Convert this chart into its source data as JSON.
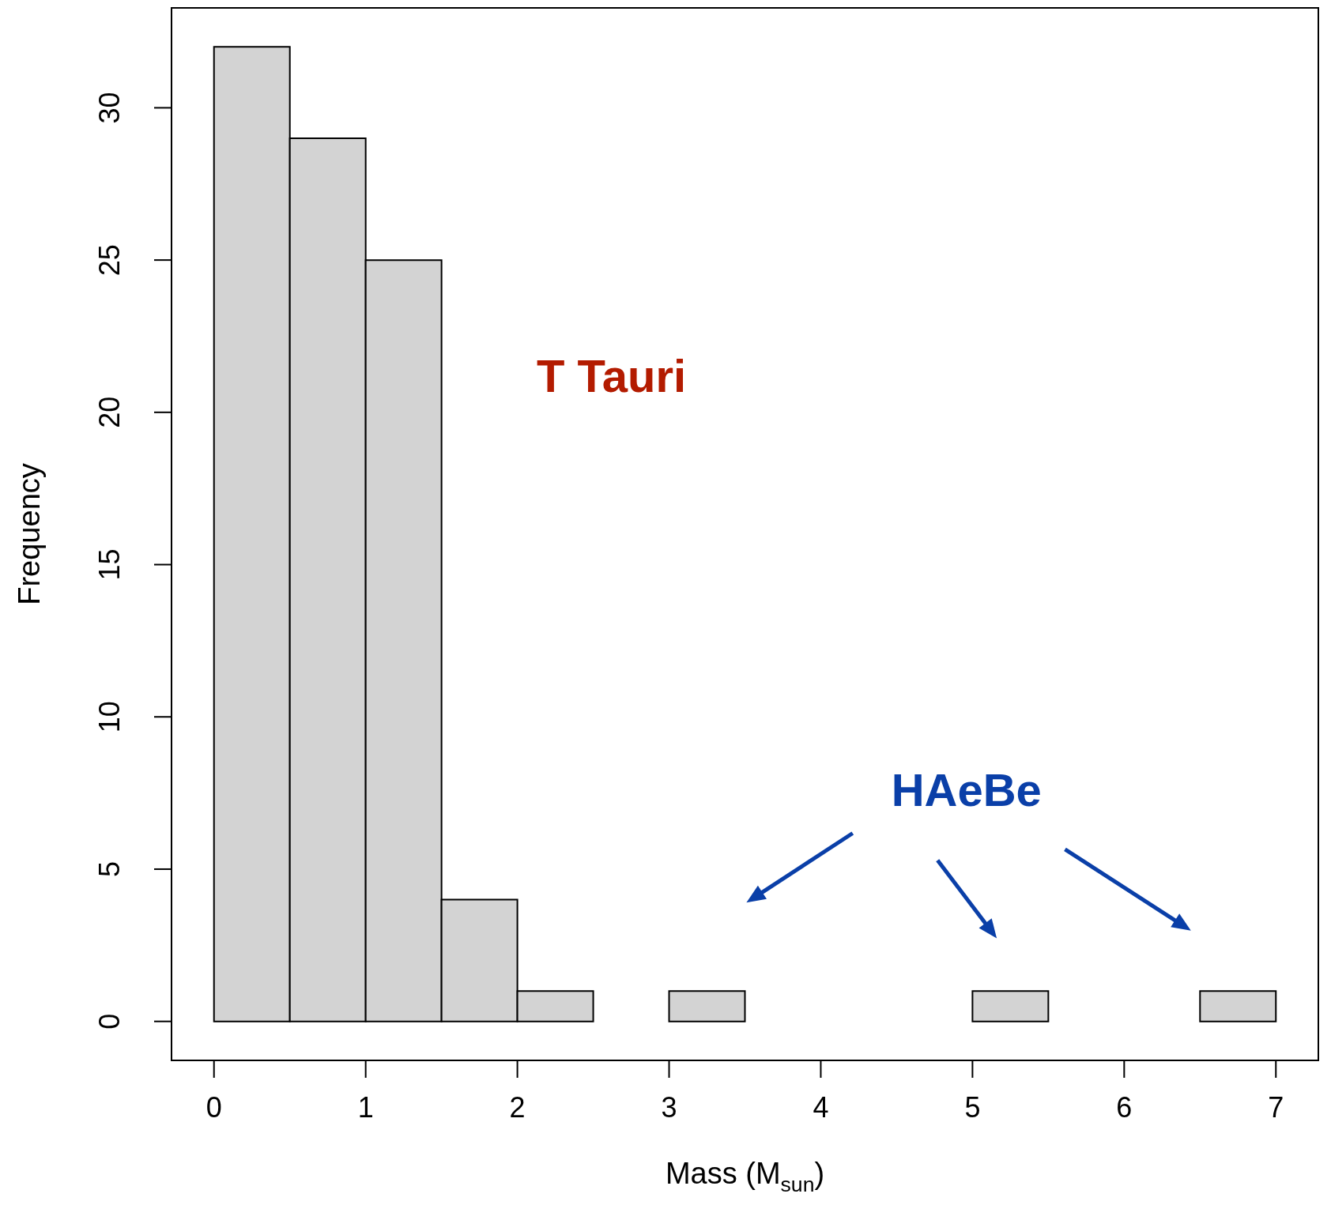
{
  "chart_data": {
    "type": "histogram",
    "xlabel": "Mass (M$_{sun}$)",
    "ylabel": "Frequency",
    "bins": [
      0,
      0.5,
      1,
      1.5,
      2,
      2.5,
      3,
      3.5,
      4,
      4.5,
      5,
      5.5,
      6,
      6.5,
      7
    ],
    "values": [
      32,
      29,
      25,
      4,
      1,
      0,
      1,
      0,
      0,
      0,
      1,
      0,
      0,
      1
    ],
    "color": "#d3d3d3",
    "xlim": [
      -0.28,
      7.28
    ],
    "xticks": [
      0,
      1,
      2,
      3,
      4,
      5,
      6,
      7
    ],
    "ylim": [
      -1.28,
      33.28
    ],
    "yticks": [
      0,
      5,
      10,
      15,
      20,
      25,
      30
    ],
    "annotations": [
      "T Tauri",
      "HAeBe"
    ]
  }
}
